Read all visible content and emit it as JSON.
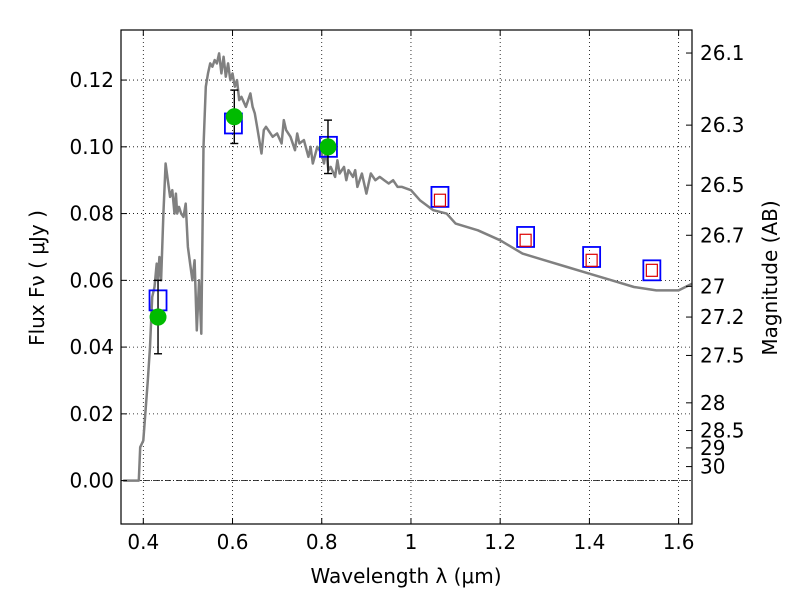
{
  "chart_data": {
    "type": "line",
    "xlabel": "Wavelength  λ (μm)",
    "ylabel_left": "Flux  Fν  ( μJy )",
    "ylabel_right": "Magnitude (AB)",
    "xlim": [
      0.35,
      1.63
    ],
    "ylim": [
      -0.013,
      0.135
    ],
    "grid": true,
    "x_ticks": [
      0.4,
      0.6,
      0.8,
      1,
      1.2,
      1.4,
      1.6
    ],
    "x_tick_labels": [
      "0.4",
      "0.6",
      "0.8",
      "1",
      "1.2",
      "1.4",
      "1.6"
    ],
    "y_ticks": [
      0.0,
      0.02,
      0.04,
      0.06,
      0.08,
      0.1,
      0.12
    ],
    "y_tick_labels": [
      "0.00",
      "0.02",
      "0.04",
      "0.06",
      "0.08",
      "0.10",
      "0.12"
    ],
    "right_ticks": [
      {
        "flux": 0.1281,
        "label": "26.1"
      },
      {
        "flux": 0.1065,
        "label": "26.3"
      },
      {
        "flux": 0.0885,
        "label": "26.5"
      },
      {
        "flux": 0.0735,
        "label": "26.7"
      },
      {
        "flux": 0.0582,
        "label": "27"
      },
      {
        "flux": 0.049,
        "label": "27.2"
      },
      {
        "flux": 0.0375,
        "label": "27.5"
      },
      {
        "flux": 0.0233,
        "label": "28"
      },
      {
        "flux": 0.015,
        "label": "28.5"
      },
      {
        "flux": 0.0098,
        "label": "29"
      },
      {
        "flux": 0.0042,
        "label": "30"
      }
    ],
    "series": [
      {
        "kind": "model-sed",
        "color": "#808080",
        "x": [
          0.355,
          0.39,
          0.393,
          0.4,
          0.41,
          0.415,
          0.42,
          0.425,
          0.43,
          0.433,
          0.436,
          0.44,
          0.445,
          0.45,
          0.455,
          0.46,
          0.465,
          0.47,
          0.473,
          0.476,
          0.48,
          0.485,
          0.49,
          0.495,
          0.5,
          0.505,
          0.51,
          0.515,
          0.52,
          0.525,
          0.53,
          0.535,
          0.54,
          0.545,
          0.55,
          0.555,
          0.56,
          0.565,
          0.57,
          0.575,
          0.58,
          0.585,
          0.59,
          0.595,
          0.6,
          0.605,
          0.61,
          0.615,
          0.62,
          0.63,
          0.64,
          0.645,
          0.65,
          0.655,
          0.66,
          0.665,
          0.67,
          0.675,
          0.68,
          0.69,
          0.7,
          0.71,
          0.715,
          0.72,
          0.73,
          0.74,
          0.745,
          0.75,
          0.76,
          0.77,
          0.775,
          0.78,
          0.79,
          0.8,
          0.805,
          0.81,
          0.815,
          0.82,
          0.83,
          0.835,
          0.84,
          0.85,
          0.855,
          0.86,
          0.87,
          0.875,
          0.88,
          0.89,
          0.9,
          0.91,
          0.92,
          0.93,
          0.94,
          0.95,
          0.96,
          0.97,
          0.98,
          1.0,
          1.02,
          1.05,
          1.08,
          1.1,
          1.15,
          1.2,
          1.25,
          1.3,
          1.35,
          1.4,
          1.45,
          1.5,
          1.55,
          1.6,
          1.63
        ],
        "values": [
          0.0,
          0.0,
          0.01,
          0.012,
          0.03,
          0.04,
          0.055,
          0.058,
          0.065,
          0.06,
          0.067,
          0.06,
          0.08,
          0.095,
          0.09,
          0.085,
          0.087,
          0.08,
          0.086,
          0.08,
          0.082,
          0.08,
          0.079,
          0.083,
          0.07,
          0.065,
          0.06,
          0.066,
          0.045,
          0.06,
          0.044,
          0.1,
          0.118,
          0.122,
          0.125,
          0.124,
          0.126,
          0.125,
          0.128,
          0.122,
          0.127,
          0.121,
          0.125,
          0.12,
          0.122,
          0.118,
          0.12,
          0.114,
          0.115,
          0.112,
          0.116,
          0.112,
          0.11,
          0.106,
          0.102,
          0.098,
          0.105,
          0.106,
          0.105,
          0.103,
          0.104,
          0.101,
          0.108,
          0.105,
          0.103,
          0.099,
          0.104,
          0.101,
          0.102,
          0.097,
          0.1,
          0.095,
          0.1,
          0.098,
          0.095,
          0.099,
          0.093,
          0.094,
          0.091,
          0.096,
          0.092,
          0.094,
          0.09,
          0.093,
          0.091,
          0.093,
          0.088,
          0.092,
          0.086,
          0.092,
          0.09,
          0.091,
          0.09,
          0.089,
          0.09,
          0.088,
          0.088,
          0.087,
          0.084,
          0.081,
          0.08,
          0.077,
          0.075,
          0.072,
          0.068,
          0.066,
          0.064,
          0.062,
          0.06,
          0.058,
          0.057,
          0.057,
          0.059
        ]
      },
      {
        "kind": "model-photometry-blue-squares",
        "color": "#0000ff",
        "x": [
          0.433,
          0.602,
          0.815,
          1.065,
          1.257,
          1.405,
          1.54
        ],
        "values": [
          0.054,
          0.107,
          0.1,
          0.085,
          0.073,
          0.067,
          0.063
        ]
      },
      {
        "kind": "nir-red-squares",
        "color": "#dd0000",
        "x": [
          1.065,
          1.257,
          1.405,
          1.54
        ],
        "values": [
          0.084,
          0.072,
          0.066,
          0.063
        ]
      },
      {
        "kind": "observed-green-points",
        "color": "#00bb00",
        "x": [
          0.433,
          0.604,
          0.814
        ],
        "values": [
          0.049,
          0.109,
          0.1
        ],
        "yerr": [
          0.011,
          0.008,
          0.008
        ]
      }
    ]
  }
}
